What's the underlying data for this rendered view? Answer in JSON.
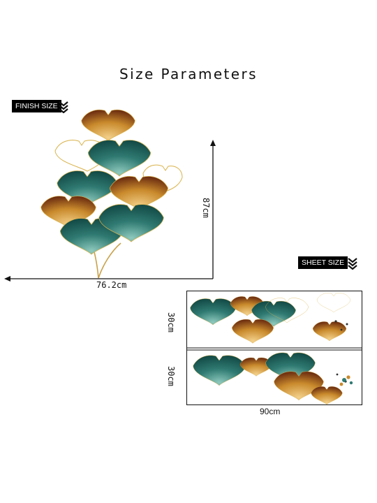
{
  "title": "Size Parameters",
  "finish": {
    "label": "FINISH SIZE",
    "height": "87cm",
    "width": "76.2cm"
  },
  "sheet": {
    "label": "SHEET SIZE",
    "height_top": "30cm",
    "height_bottom": "30cm",
    "width": "90cm"
  },
  "colors": {
    "teal": "#2f7a72",
    "gold": "#c98a2c",
    "brown": "#7a3a14",
    "outline": "#d9b24a"
  },
  "icons": [
    "chevron-down-double-icon",
    "arrow-up-icon",
    "arrow-left-icon"
  ]
}
